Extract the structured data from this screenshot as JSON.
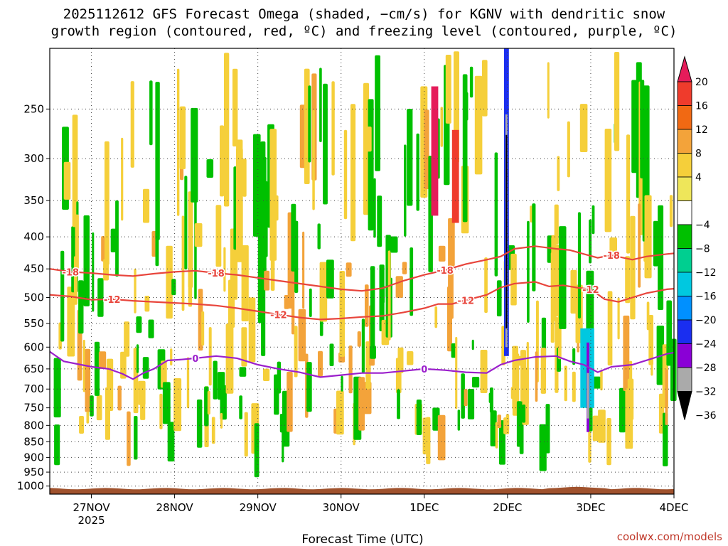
{
  "chart_data": {
    "type": "heatmap",
    "title_line1": "2025112612 GFS Forecast Omega (shaded, −cm/s) for KGNV with dendritic snow",
    "title_line2": "growth region (contoured, red, ºC) and freezing level (contoured, purple, ºC)",
    "xlabel": "Forecast Time (UTC)",
    "credit": "coolwx.com/models",
    "x_range_hours": [
      -12,
      168
    ],
    "y_range_hpa": [
      1030,
      200
    ],
    "x_ticks": [
      {
        "hour": 0,
        "label": "27NOV",
        "sublabel": "2025"
      },
      {
        "hour": 24,
        "label": "28NOV",
        "sublabel": ""
      },
      {
        "hour": 48,
        "label": "29NOV",
        "sublabel": ""
      },
      {
        "hour": 72,
        "label": "30NOV",
        "sublabel": ""
      },
      {
        "hour": 96,
        "label": "1DEC",
        "sublabel": ""
      },
      {
        "hour": 120,
        "label": "2DEC",
        "sublabel": ""
      },
      {
        "hour": 144,
        "label": "3DEC",
        "sublabel": ""
      },
      {
        "hour": 168,
        "label": "4DEC",
        "sublabel": ""
      }
    ],
    "y_ticks": [
      250,
      300,
      350,
      400,
      450,
      500,
      550,
      600,
      650,
      700,
      750,
      800,
      850,
      900,
      950,
      1000
    ],
    "colorbar": {
      "labels": [
        "20",
        "16",
        "12",
        "8",
        "4",
        "−4",
        "−8",
        "−12",
        "−16",
        "−20",
        "−24",
        "−28",
        "−32",
        "−36"
      ],
      "colors": [
        "#e51c5a",
        "#ef3b2c",
        "#f16913",
        "#f3a33a",
        "#f5cf3a",
        "#eee65a",
        "#ffffff",
        "#00c000",
        "#00cf90",
        "#00c8e0",
        "#0090ff",
        "#1a2ef0",
        "#8a00d6",
        "#aaaaaa",
        "#000000"
      ]
    },
    "contour_labels": {
      "freezing": "0",
      "dgz_top": "-18",
      "dgz_bottom": "-12"
    },
    "freezing_level": {
      "color": "#9b1fcc",
      "points": [
        [
          -12,
          610
        ],
        [
          -8,
          632
        ],
        [
          -3,
          640
        ],
        [
          0,
          645
        ],
        [
          5,
          650
        ],
        [
          9,
          662
        ],
        [
          12,
          675
        ],
        [
          15,
          660
        ],
        [
          18,
          650
        ],
        [
          22,
          630
        ],
        [
          26,
          628
        ],
        [
          30,
          625
        ],
        [
          36,
          620
        ],
        [
          42,
          625
        ],
        [
          48,
          640
        ],
        [
          54,
          650
        ],
        [
          60,
          658
        ],
        [
          66,
          670
        ],
        [
          72,
          665
        ],
        [
          78,
          660
        ],
        [
          84,
          660
        ],
        [
          90,
          655
        ],
        [
          96,
          650
        ],
        [
          102,
          653
        ],
        [
          108,
          658
        ],
        [
          114,
          660
        ],
        [
          118,
          640
        ],
        [
          122,
          630
        ],
        [
          128,
          622
        ],
        [
          134,
          620
        ],
        [
          138,
          632
        ],
        [
          142,
          640
        ],
        [
          146,
          658
        ],
        [
          150,
          645
        ],
        [
          156,
          640
        ],
        [
          160,
          630
        ],
        [
          166,
          615
        ],
        [
          168,
          612
        ]
      ]
    },
    "dgz_top_18": {
      "color": "#e8453c",
      "points": [
        [
          -12,
          450
        ],
        [
          -6,
          455
        ],
        [
          0,
          457
        ],
        [
          6,
          460
        ],
        [
          12,
          462
        ],
        [
          18,
          458
        ],
        [
          24,
          455
        ],
        [
          30,
          453
        ],
        [
          36,
          457
        ],
        [
          42,
          460
        ],
        [
          48,
          465
        ],
        [
          54,
          470
        ],
        [
          60,
          475
        ],
        [
          66,
          480
        ],
        [
          72,
          485
        ],
        [
          78,
          488
        ],
        [
          84,
          483
        ],
        [
          90,
          470
        ],
        [
          96,
          460
        ],
        [
          102,
          452
        ],
        [
          108,
          442
        ],
        [
          114,
          435
        ],
        [
          118,
          430
        ],
        [
          122,
          418
        ],
        [
          128,
          414
        ],
        [
          134,
          418
        ],
        [
          138,
          420
        ],
        [
          142,
          426
        ],
        [
          146,
          432
        ],
        [
          150,
          428
        ],
        [
          156,
          435
        ],
        [
          160,
          430
        ],
        [
          166,
          426
        ],
        [
          168,
          425
        ]
      ]
    },
    "dgz_bottom_12": {
      "color": "#e8453c",
      "points": [
        [
          -12,
          495
        ],
        [
          -6,
          498
        ],
        [
          0,
          504
        ],
        [
          6,
          503
        ],
        [
          12,
          506
        ],
        [
          18,
          508
        ],
        [
          24,
          510
        ],
        [
          30,
          512
        ],
        [
          36,
          515
        ],
        [
          42,
          520
        ],
        [
          48,
          526
        ],
        [
          54,
          532
        ],
        [
          60,
          538
        ],
        [
          66,
          542
        ],
        [
          72,
          540
        ],
        [
          78,
          537
        ],
        [
          84,
          535
        ],
        [
          90,
          528
        ],
        [
          96,
          520
        ],
        [
          100,
          512
        ],
        [
          104,
          512
        ],
        [
          108,
          505
        ],
        [
          114,
          495
        ],
        [
          118,
          482
        ],
        [
          122,
          475
        ],
        [
          128,
          472
        ],
        [
          132,
          480
        ],
        [
          136,
          478
        ],
        [
          140,
          482
        ],
        [
          144,
          485
        ],
        [
          148,
          503
        ],
        [
          152,
          508
        ],
        [
          156,
          500
        ],
        [
          160,
          492
        ],
        [
          166,
          485
        ],
        [
          168,
          484
        ]
      ]
    },
    "omega_regions": [
      {
        "x0": 119,
        "x1": 120.4,
        "p0": 200,
        "p1": 620,
        "value": -20
      },
      {
        "x0": 119.4,
        "x1": 120.0,
        "p0": 255,
        "p1": 600,
        "value": -28
      },
      {
        "x0": 119.5,
        "x1": 119.9,
        "p0": 275,
        "p1": 560,
        "value": -36
      },
      {
        "x0": 141,
        "x1": 145,
        "p0": 560,
        "p1": 750,
        "value": -12
      },
      {
        "x0": 142.8,
        "x1": 143.6,
        "p0": 590,
        "p1": 820,
        "value": -24
      },
      {
        "x0": 142.9,
        "x1": 143.5,
        "p0": 660,
        "p1": 780,
        "value": -30
      },
      {
        "x0": 98,
        "x1": 100,
        "p0": 230,
        "p1": 370,
        "value": 20
      },
      {
        "x0": 104,
        "x1": 106,
        "p0": 270,
        "p1": 380,
        "value": 16
      }
    ]
  }
}
